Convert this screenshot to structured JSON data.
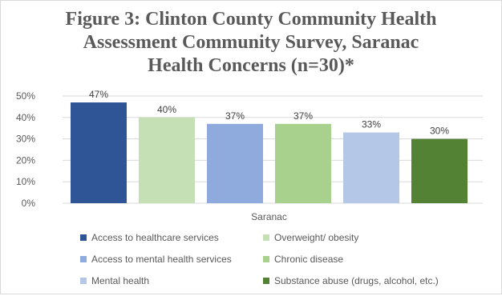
{
  "chart_data": {
    "type": "bar",
    "title": [
      "Figure 3: Clinton County Community Health",
      "Assessment Community Survey, Saranac",
      "Health Concerns (n=30)*"
    ],
    "categories": [
      "Saranac"
    ],
    "xlabel": "",
    "ylabel": "",
    "ylim": [
      0,
      50
    ],
    "y_ticks": [
      "0%",
      "10%",
      "20%",
      "30%",
      "40%",
      "50%"
    ],
    "grid": true,
    "legend_position": "bottom",
    "series": [
      {
        "name": "Access to healthcare services",
        "values": [
          47
        ],
        "label": "47%",
        "color": "#2f5597"
      },
      {
        "name": "Overweight/ obesity",
        "values": [
          40
        ],
        "label": "40%",
        "color": "#c5e0b4"
      },
      {
        "name": "Access to mental health services",
        "values": [
          37
        ],
        "label": "37%",
        "color": "#8faadc"
      },
      {
        "name": "Chronic disease",
        "values": [
          37
        ],
        "label": "37%",
        "color": "#a9d18e"
      },
      {
        "name": "Mental health",
        "values": [
          33
        ],
        "label": "33%",
        "color": "#b4c7e7"
      },
      {
        "name": "Substance abuse (drugs, alcohol, etc.)",
        "values": [
          30
        ],
        "label": "30%",
        "color": "#548235"
      }
    ]
  }
}
